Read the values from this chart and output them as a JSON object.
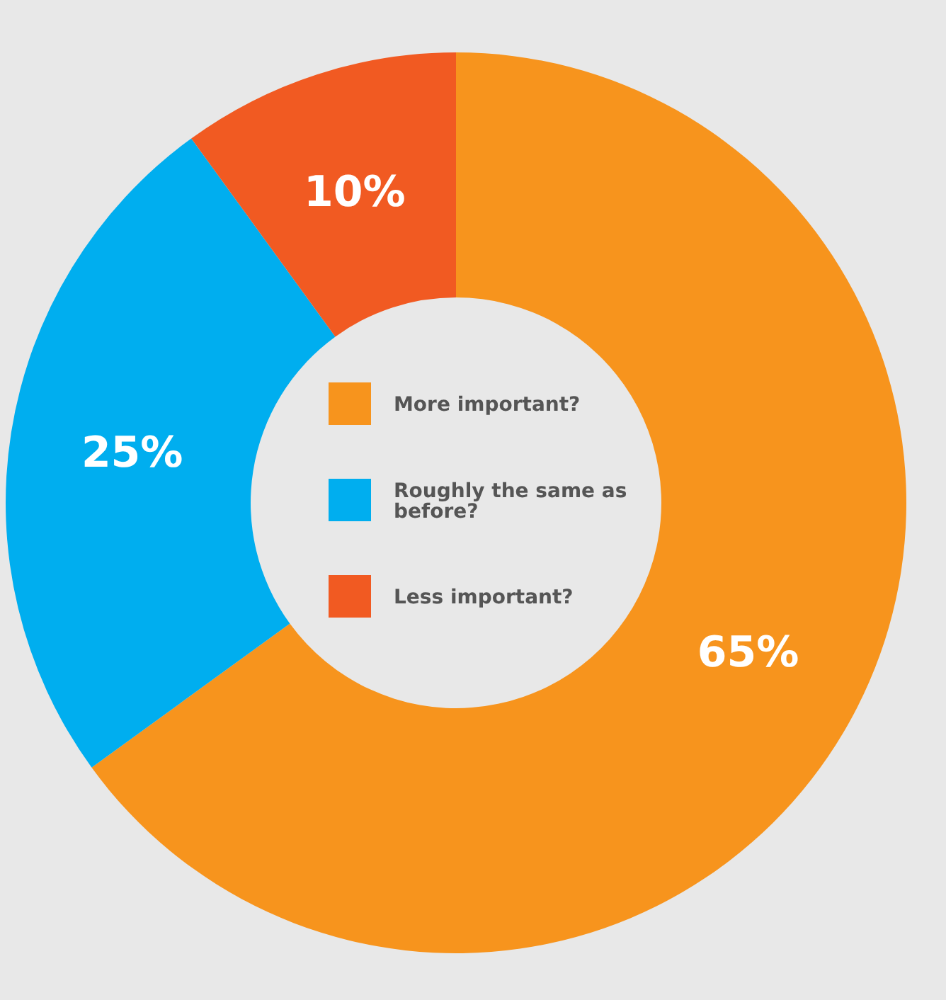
{
  "chart_data": {
    "type": "donut",
    "categories": [
      "More important?",
      "Roughly the same as before?",
      "Less important?"
    ],
    "values": [
      65,
      25,
      10
    ],
    "colors": [
      "#f7941d",
      "#00aeef",
      "#f15a22"
    ],
    "value_labels": [
      "65%",
      "25%",
      "10%"
    ],
    "legend": "center"
  }
}
